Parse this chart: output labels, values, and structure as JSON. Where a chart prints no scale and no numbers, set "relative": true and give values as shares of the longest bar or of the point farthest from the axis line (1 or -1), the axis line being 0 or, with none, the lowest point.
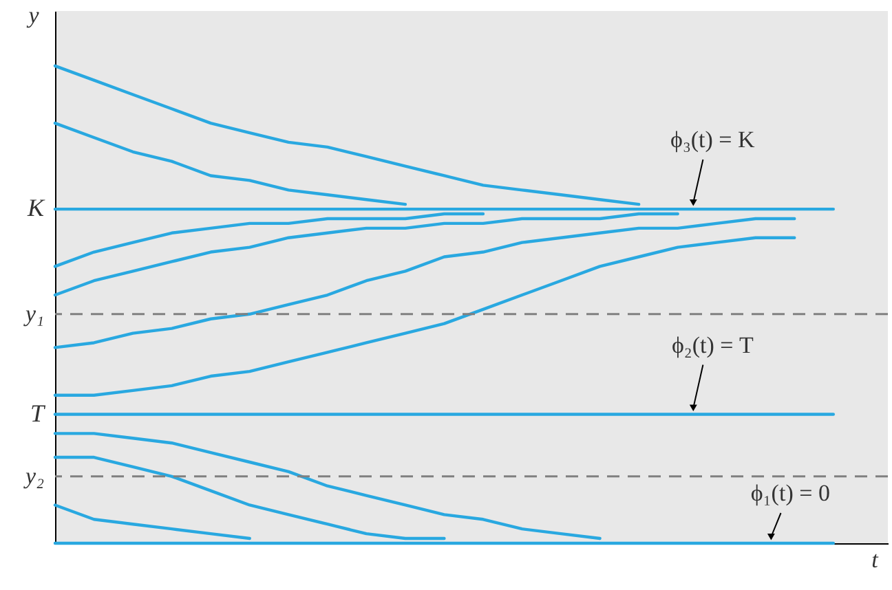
{
  "chart_data": {
    "type": "line",
    "relative": true,
    "xlabel": "t",
    "ylabel": "y",
    "categories": [
      null,
      null,
      null,
      null,
      null,
      null,
      null,
      null,
      null,
      null,
      null,
      null,
      null,
      null,
      null,
      null,
      null,
      null,
      null,
      null,
      null
    ],
    "series": [
      {
        "color": "#29a8e0",
        "values": [
          0.7,
          0.7,
          0.7,
          0.7,
          0.7,
          0.7,
          0.7,
          0.7,
          0.7,
          0.7,
          0.7,
          0.7,
          0.7,
          0.7,
          0.7,
          0.7,
          0.7,
          0.7,
          0.7,
          0.7,
          0.7
        ]
      },
      {
        "color": "#29a8e0",
        "values": [
          0.27,
          0.27,
          0.27,
          0.27,
          0.27,
          0.27,
          0.27,
          0.27,
          0.27,
          0.27,
          0.27,
          0.27,
          0.27,
          0.27,
          0.27,
          0.27,
          0.27,
          0.27,
          0.27,
          0.27,
          0.27
        ]
      },
      {
        "color": "#29a8e0",
        "values": [
          0,
          0,
          0,
          0,
          0,
          0,
          0,
          0,
          0,
          0,
          0,
          0,
          0,
          0,
          0,
          0,
          0,
          0,
          0,
          0,
          0
        ]
      },
      {
        "color": "#29a8e0",
        "values": [
          1,
          0.97,
          0.94,
          0.91,
          0.88,
          0.86,
          0.84,
          0.83,
          0.81,
          0.79,
          0.77,
          0.75,
          0.74,
          0.73,
          0.72,
          0.71,
          null,
          null,
          null,
          null,
          null
        ]
      },
      {
        "color": "#29a8e0",
        "values": [
          0.88,
          0.85,
          0.82,
          0.8,
          0.77,
          0.76,
          0.74,
          0.73,
          0.72,
          0.71,
          null,
          null,
          null,
          null,
          null,
          null,
          null,
          null,
          null,
          null,
          null
        ]
      },
      {
        "color": "#29a8e0",
        "values": [
          0.58,
          0.61,
          0.63,
          0.65,
          0.66,
          0.67,
          0.67,
          0.68,
          0.68,
          0.68,
          0.69,
          0.69,
          null,
          null,
          null,
          null,
          null,
          null,
          null,
          null,
          null
        ]
      },
      {
        "color": "#29a8e0",
        "values": [
          0.52,
          0.55,
          0.57,
          0.59,
          0.61,
          0.62,
          0.64,
          0.65,
          0.66,
          0.66,
          0.67,
          0.67,
          0.68,
          0.68,
          0.68,
          0.69,
          0.69,
          null,
          null,
          null,
          null
        ]
      },
      {
        "color": "#29a8e0",
        "values": [
          0.41,
          0.42,
          0.44,
          0.45,
          0.47,
          0.48,
          0.5,
          0.52,
          0.55,
          0.57,
          0.6,
          0.61,
          0.63,
          0.64,
          0.65,
          0.66,
          0.66,
          0.67,
          0.68,
          0.68,
          null
        ]
      },
      {
        "color": "#29a8e0",
        "values": [
          0.31,
          0.31,
          0.32,
          0.33,
          0.35,
          0.36,
          0.38,
          0.4,
          0.42,
          0.44,
          0.46,
          0.49,
          0.52,
          0.55,
          0.58,
          0.6,
          0.62,
          0.63,
          0.64,
          0.64,
          null
        ]
      },
      {
        "color": "#29a8e0",
        "values": [
          0.23,
          0.23,
          0.22,
          0.21,
          0.19,
          0.17,
          0.15,
          0.12,
          0.1,
          0.08,
          0.06,
          0.05,
          0.03,
          0.02,
          0.01,
          null,
          null,
          null,
          null,
          null,
          null
        ]
      },
      {
        "color": "#29a8e0",
        "values": [
          0.18,
          0.18,
          0.16,
          0.14,
          0.11,
          0.08,
          0.06,
          0.04,
          0.02,
          0.01,
          0.01,
          null,
          null,
          null,
          null,
          null,
          null,
          null,
          null,
          null,
          null
        ]
      },
      {
        "color": "#29a8e0",
        "values": [
          0.08,
          0.05,
          0.04,
          0.03,
          0.02,
          0.01,
          null,
          null,
          null,
          null,
          null,
          null,
          null,
          null,
          null,
          null,
          null,
          null,
          null,
          null,
          null
        ]
      }
    ],
    "ref_lines": [
      {
        "axis": "y",
        "value": 0.48,
        "label": "y₁",
        "color": "#808080",
        "line_style": "dashed"
      },
      {
        "axis": "y",
        "value": 0.14,
        "label": "y₂",
        "color": "#808080",
        "line_style": "dashed"
      }
    ],
    "annotations": [
      "K",
      "T",
      {
        "text": "ϕ₃(t) = K",
        "y": 0.7
      },
      {
        "text": "ϕ₂(t) = T",
        "y": 0.27
      },
      {
        "text": "ϕ₁(t) = 0",
        "y": 0
      }
    ]
  }
}
